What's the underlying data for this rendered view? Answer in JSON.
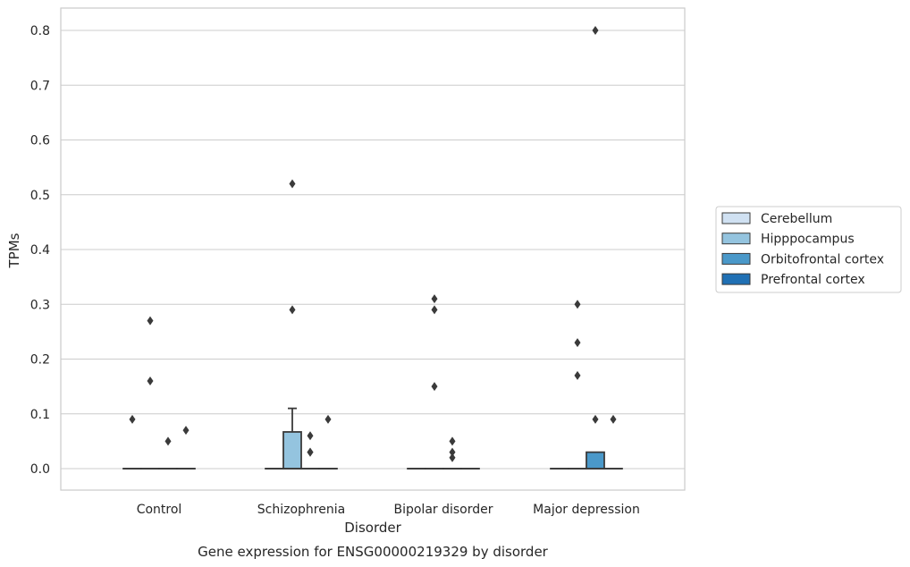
{
  "chart_data": {
    "type": "box",
    "xlabel": "Disorder",
    "ylabel": "TPMs",
    "caption": "Gene expression for ENSG00000219329 by disorder",
    "ylim": [
      -0.04,
      0.84
    ],
    "yticks": [
      "0.0",
      "0.1",
      "0.2",
      "0.3",
      "0.4",
      "0.5",
      "0.6",
      "0.7",
      "0.8"
    ],
    "ytick_values": [
      0.0,
      0.1,
      0.2,
      0.3,
      0.4,
      0.5,
      0.6,
      0.7,
      0.8
    ],
    "grid": true,
    "legend_position": "right",
    "categories": [
      "Control",
      "Schizophrenia",
      "Bipolar disorder",
      "Major depression"
    ],
    "series": [
      {
        "name": "Cerebellum",
        "color": "#d0e1f2",
        "boxes": [
          {
            "q1": 0,
            "median": 0,
            "q3": 0,
            "whisker_low": 0,
            "whisker_high": 0,
            "outliers": [
              0.09
            ]
          },
          {
            "q1": 0,
            "median": 0,
            "q3": 0,
            "whisker_low": 0,
            "whisker_high": 0,
            "outliers": []
          },
          {
            "q1": 0,
            "median": 0,
            "q3": 0,
            "whisker_low": 0,
            "whisker_high": 0,
            "outliers": []
          },
          {
            "q1": 0,
            "median": 0,
            "q3": 0,
            "whisker_low": 0,
            "whisker_high": 0,
            "outliers": []
          }
        ]
      },
      {
        "name": "Hipppocampus",
        "color": "#94c4df",
        "boxes": [
          {
            "q1": 0,
            "median": 0,
            "q3": 0,
            "whisker_low": 0,
            "whisker_high": 0,
            "outliers": [
              0.27,
              0.16
            ]
          },
          {
            "q1": 0,
            "median": 0,
            "q3": 0.067,
            "whisker_low": 0,
            "whisker_high": 0.11,
            "outliers": [
              0.52,
              0.29
            ]
          },
          {
            "q1": 0,
            "median": 0,
            "q3": 0,
            "whisker_low": 0,
            "whisker_high": 0,
            "outliers": [
              0.31,
              0.29,
              0.15
            ]
          },
          {
            "q1": 0,
            "median": 0,
            "q3": 0,
            "whisker_low": 0,
            "whisker_high": 0,
            "outliers": [
              0.3,
              0.23,
              0.17
            ]
          }
        ]
      },
      {
        "name": "Orbitofrontal cortex",
        "color": "#4a98c9",
        "boxes": [
          {
            "q1": 0,
            "median": 0,
            "q3": 0,
            "whisker_low": 0,
            "whisker_high": 0,
            "outliers": [
              0.05
            ]
          },
          {
            "q1": 0,
            "median": 0,
            "q3": 0,
            "whisker_low": 0,
            "whisker_high": 0,
            "outliers": [
              0.06,
              0.03,
              0.03
            ]
          },
          {
            "q1": 0,
            "median": 0,
            "q3": 0,
            "whisker_low": 0,
            "whisker_high": 0,
            "outliers": [
              0.05,
              0.03,
              0.02
            ]
          },
          {
            "q1": 0,
            "median": 0,
            "q3": 0.03,
            "whisker_low": 0,
            "whisker_high": 0.03,
            "outliers": [
              0.8,
              0.09
            ]
          }
        ]
      },
      {
        "name": "Prefrontal cortex",
        "color": "#2070b4",
        "boxes": [
          {
            "q1": 0,
            "median": 0,
            "q3": 0,
            "whisker_low": 0,
            "whisker_high": 0,
            "outliers": [
              0.07
            ]
          },
          {
            "q1": 0,
            "median": 0,
            "q3": 0,
            "whisker_low": 0,
            "whisker_high": 0,
            "outliers": [
              0.09
            ]
          },
          {
            "q1": 0,
            "median": 0,
            "q3": 0,
            "whisker_low": 0,
            "whisker_high": 0,
            "outliers": []
          },
          {
            "q1": 0,
            "median": 0,
            "q3": 0,
            "whisker_low": 0,
            "whisker_high": 0,
            "outliers": [
              0.09
            ]
          }
        ]
      }
    ]
  },
  "colors": {
    "grid": "#cccccc",
    "frame": "#cccccc",
    "box_edge": "#3a3a3a",
    "outlier": "#3a3a3a"
  }
}
